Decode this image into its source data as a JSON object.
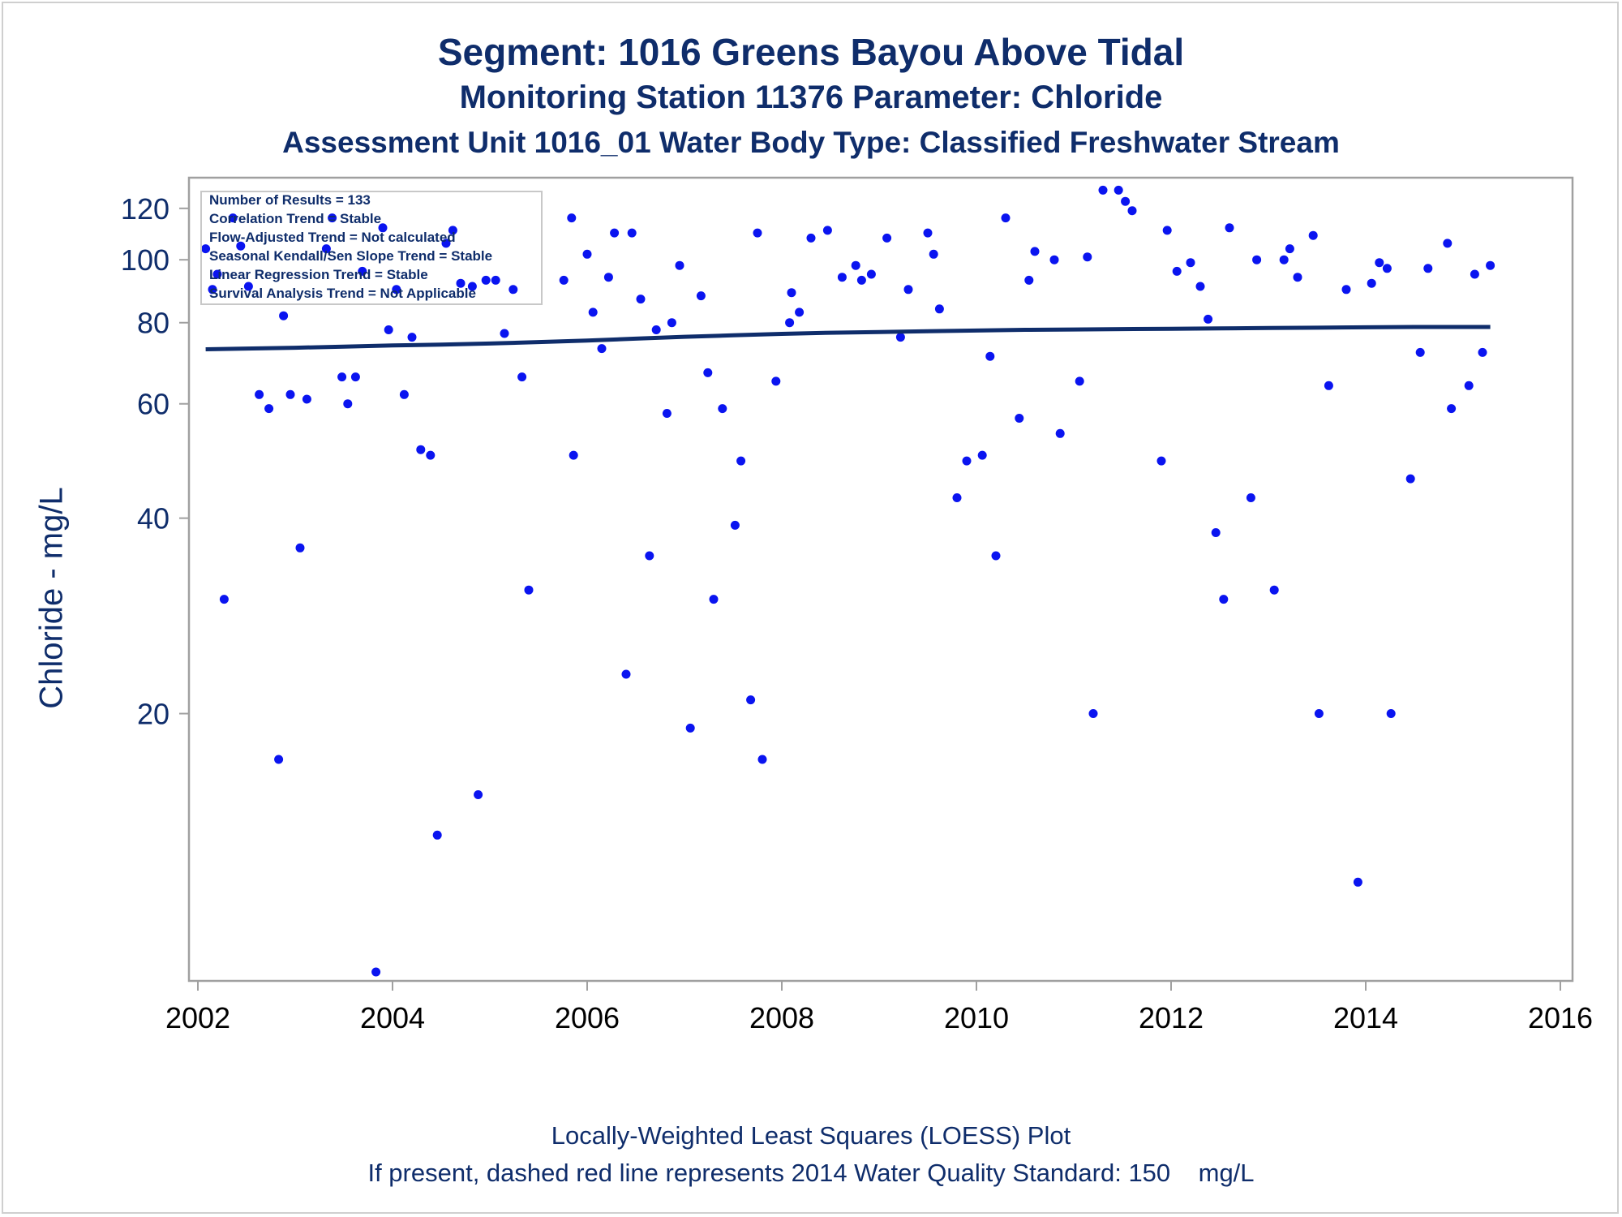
{
  "title": {
    "line1": "Segment: 1016  Greens Bayou Above Tidal",
    "line2": "Monitoring Station 11376 Parameter: Chloride",
    "line3": "Assessment Unit 1016_01   Water Body Type: Classified Freshwater Stream"
  },
  "inset": {
    "lines": [
      "Number of Results = 133",
      "Correlation Trend = Stable",
      "Flow-Adjusted Trend = Not calculated",
      "Seasonal Kendall/Sen Slope Trend = Stable",
      "Linear Regression Trend = Stable",
      "Survival Analysis Trend = Not Applicable"
    ]
  },
  "footer": {
    "line1": "Locally-Weighted Least Squares (LOESS) Plot",
    "line2": "If present, dashed red line represents 2014 Water Quality Standard: 150    mg/L"
  },
  "colors": {
    "title": "#0f2d6b",
    "points": "#0a14f0",
    "loess": "#0f2d6b",
    "axis": "#a0a0a0"
  },
  "chart_data": {
    "type": "scatter",
    "title": "Segment: 1016  Greens Bayou Above Tidal",
    "xlabel": "",
    "ylabel": "Chloride - mg/L",
    "xlim": [
      2002,
      2016
    ],
    "ylim": [
      8,
      130
    ],
    "y_scale": "log",
    "grid": false,
    "x_ticks": [
      "2002",
      "2004",
      "2006",
      "2008",
      "2010",
      "2012",
      "2014",
      "2016"
    ],
    "y_ticks": [
      "20",
      "40",
      "60",
      "80",
      "100",
      "120"
    ],
    "points": [
      [
        2002.08,
        104
      ],
      [
        2002.15,
        90
      ],
      [
        2002.2,
        95
      ],
      [
        2002.27,
        30
      ],
      [
        2002.36,
        116
      ],
      [
        2002.44,
        105
      ],
      [
        2002.52,
        91
      ],
      [
        2002.63,
        62
      ],
      [
        2002.73,
        59
      ],
      [
        2002.83,
        17
      ],
      [
        2002.88,
        82
      ],
      [
        2002.95,
        62
      ],
      [
        2003.05,
        36
      ],
      [
        2003.12,
        61
      ],
      [
        2003.32,
        104
      ],
      [
        2003.38,
        116
      ],
      [
        2003.48,
        66
      ],
      [
        2003.54,
        60
      ],
      [
        2003.62,
        66
      ],
      [
        2003.69,
        96
      ],
      [
        2003.83,
        8
      ],
      [
        2003.9,
        112
      ],
      [
        2003.96,
        78
      ],
      [
        2004.04,
        90
      ],
      [
        2004.12,
        62
      ],
      [
        2004.2,
        76
      ],
      [
        2004.29,
        51
      ],
      [
        2004.39,
        50
      ],
      [
        2004.46,
        13
      ],
      [
        2004.55,
        106
      ],
      [
        2004.62,
        111
      ],
      [
        2004.7,
        92
      ],
      [
        2004.82,
        91
      ],
      [
        2004.88,
        15
      ],
      [
        2004.96,
        93
      ],
      [
        2005.06,
        93
      ],
      [
        2005.15,
        77
      ],
      [
        2005.24,
        90
      ],
      [
        2005.33,
        66
      ],
      [
        2005.4,
        31
      ],
      [
        2005.76,
        93
      ],
      [
        2005.84,
        116
      ],
      [
        2005.86,
        50
      ],
      [
        2006.0,
        102
      ],
      [
        2006.06,
        83
      ],
      [
        2006.15,
        73
      ],
      [
        2006.22,
        94
      ],
      [
        2006.28,
        110
      ],
      [
        2006.4,
        23
      ],
      [
        2006.46,
        110
      ],
      [
        2006.55,
        87
      ],
      [
        2006.64,
        35
      ],
      [
        2006.71,
        78
      ],
      [
        2006.82,
        58
      ],
      [
        2006.87,
        80
      ],
      [
        2006.95,
        98
      ],
      [
        2007.06,
        19
      ],
      [
        2007.17,
        88
      ],
      [
        2007.24,
        67
      ],
      [
        2007.3,
        30
      ],
      [
        2007.39,
        59
      ],
      [
        2007.52,
        39
      ],
      [
        2007.58,
        49
      ],
      [
        2007.68,
        21
      ],
      [
        2007.75,
        110
      ],
      [
        2007.8,
        17
      ],
      [
        2007.94,
        65
      ],
      [
        2008.08,
        80
      ],
      [
        2008.1,
        89
      ],
      [
        2008.18,
        83
      ],
      [
        2008.3,
        108
      ],
      [
        2008.47,
        111
      ],
      [
        2008.62,
        94
      ],
      [
        2008.76,
        98
      ],
      [
        2008.82,
        93
      ],
      [
        2008.92,
        95
      ],
      [
        2009.08,
        108
      ],
      [
        2009.22,
        76
      ],
      [
        2009.3,
        90
      ],
      [
        2009.5,
        110
      ],
      [
        2009.56,
        102
      ],
      [
        2009.62,
        84
      ],
      [
        2009.8,
        43
      ],
      [
        2009.9,
        49
      ],
      [
        2010.06,
        50
      ],
      [
        2010.14,
        71
      ],
      [
        2010.2,
        35
      ],
      [
        2010.3,
        116
      ],
      [
        2010.44,
        57
      ],
      [
        2010.54,
        93
      ],
      [
        2010.6,
        103
      ],
      [
        2010.8,
        100
      ],
      [
        2010.86,
        54
      ],
      [
        2011.06,
        65
      ],
      [
        2011.14,
        101
      ],
      [
        2011.2,
        20
      ],
      [
        2011.3,
        128
      ],
      [
        2011.46,
        128
      ],
      [
        2011.53,
        123
      ],
      [
        2011.6,
        119
      ],
      [
        2011.9,
        49
      ],
      [
        2011.96,
        111
      ],
      [
        2012.06,
        96
      ],
      [
        2012.2,
        99
      ],
      [
        2012.3,
        91
      ],
      [
        2012.38,
        81
      ],
      [
        2012.46,
        38
      ],
      [
        2012.54,
        30
      ],
      [
        2012.6,
        112
      ],
      [
        2012.82,
        43
      ],
      [
        2012.88,
        100
      ],
      [
        2013.06,
        31
      ],
      [
        2013.16,
        100
      ],
      [
        2013.22,
        104
      ],
      [
        2013.3,
        94
      ],
      [
        2013.46,
        109
      ],
      [
        2013.52,
        20
      ],
      [
        2013.62,
        64
      ],
      [
        2013.8,
        90
      ],
      [
        2013.92,
        11
      ],
      [
        2014.06,
        92
      ],
      [
        2014.14,
        99
      ],
      [
        2014.22,
        97
      ],
      [
        2014.26,
        20
      ],
      [
        2014.46,
        46
      ],
      [
        2014.56,
        72
      ],
      [
        2014.64,
        97
      ],
      [
        2014.84,
        106
      ],
      [
        2014.88,
        59
      ],
      [
        2015.06,
        64
      ],
      [
        2015.12,
        95
      ],
      [
        2015.2,
        72
      ],
      [
        2015.28,
        98
      ]
    ],
    "loess": [
      [
        2002.08,
        72.8
      ],
      [
        2002.5,
        73.0
      ],
      [
        2003.0,
        73.2
      ],
      [
        2003.5,
        73.5
      ],
      [
        2004.0,
        73.8
      ],
      [
        2004.5,
        74.0
      ],
      [
        2005.0,
        74.3
      ],
      [
        2005.5,
        74.7
      ],
      [
        2006.0,
        75.1
      ],
      [
        2006.5,
        75.6
      ],
      [
        2007.0,
        76.1
      ],
      [
        2007.5,
        76.5
      ],
      [
        2008.0,
        76.9
      ],
      [
        2008.5,
        77.2
      ],
      [
        2009.0,
        77.4
      ],
      [
        2009.5,
        77.6
      ],
      [
        2010.0,
        77.8
      ],
      [
        2010.5,
        78.0
      ],
      [
        2011.0,
        78.1
      ],
      [
        2011.5,
        78.2
      ],
      [
        2012.0,
        78.3
      ],
      [
        2012.5,
        78.4
      ],
      [
        2013.0,
        78.5
      ],
      [
        2013.5,
        78.6
      ],
      [
        2014.0,
        78.7
      ],
      [
        2014.5,
        78.8
      ],
      [
        2015.0,
        78.8
      ],
      [
        2015.28,
        78.8
      ]
    ]
  }
}
